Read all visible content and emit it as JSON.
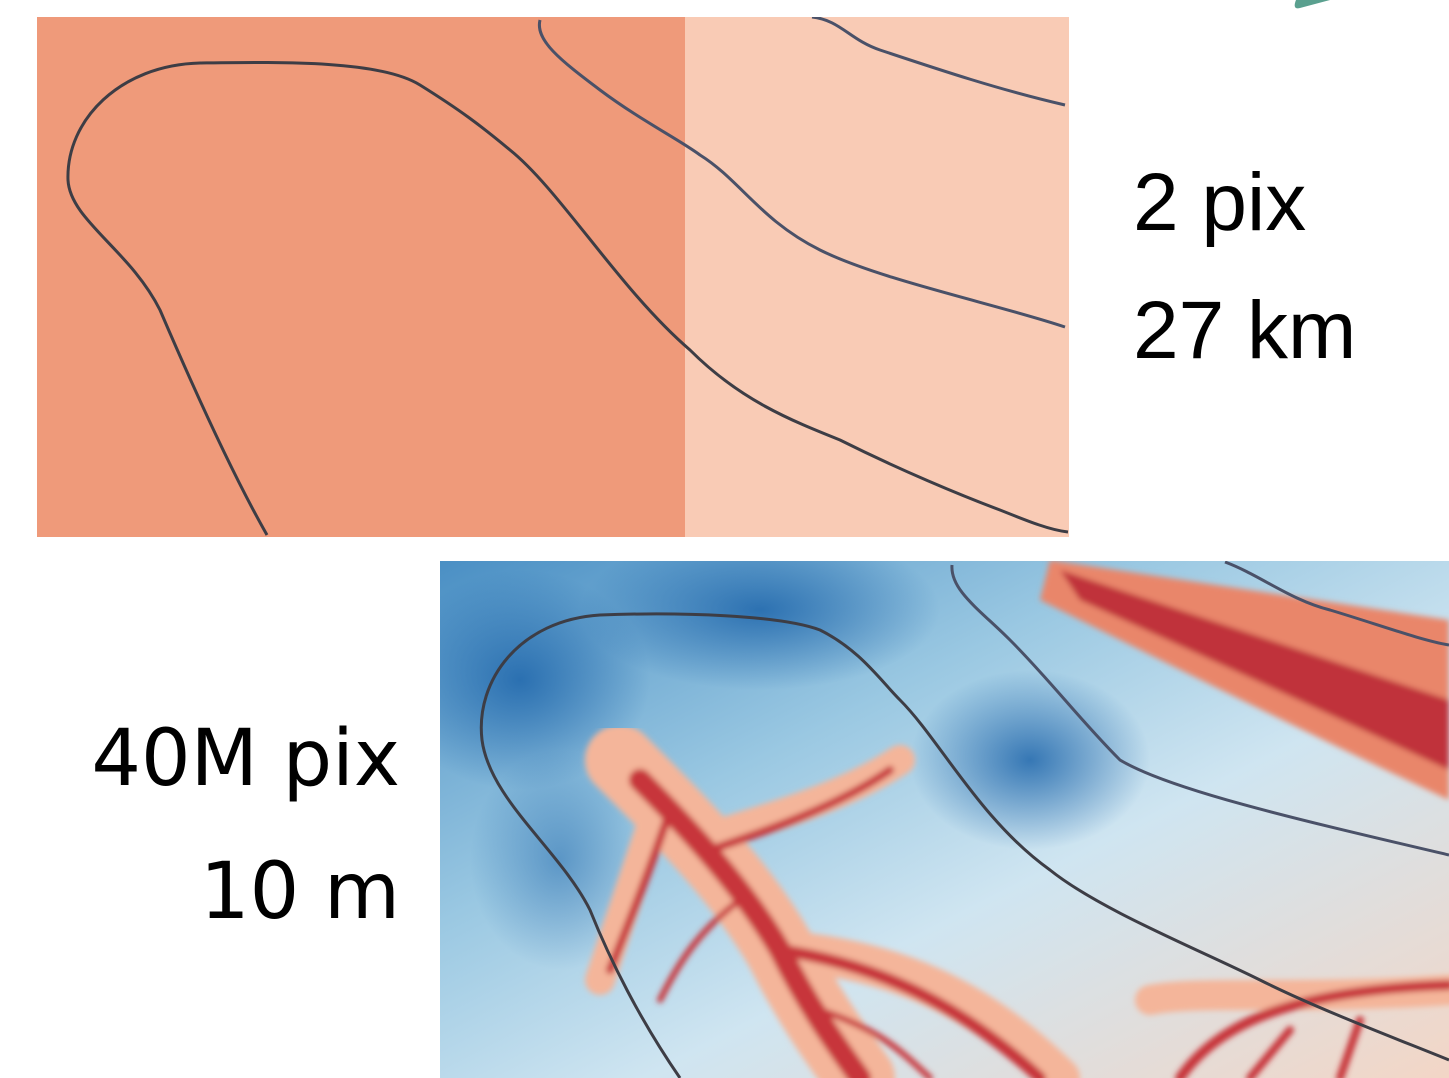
{
  "top_panel": {
    "resolution": "2 pix",
    "cell_size": "27 km"
  },
  "bottom_panel": {
    "resolution": "40M pix",
    "cell_size": "10 m"
  }
}
